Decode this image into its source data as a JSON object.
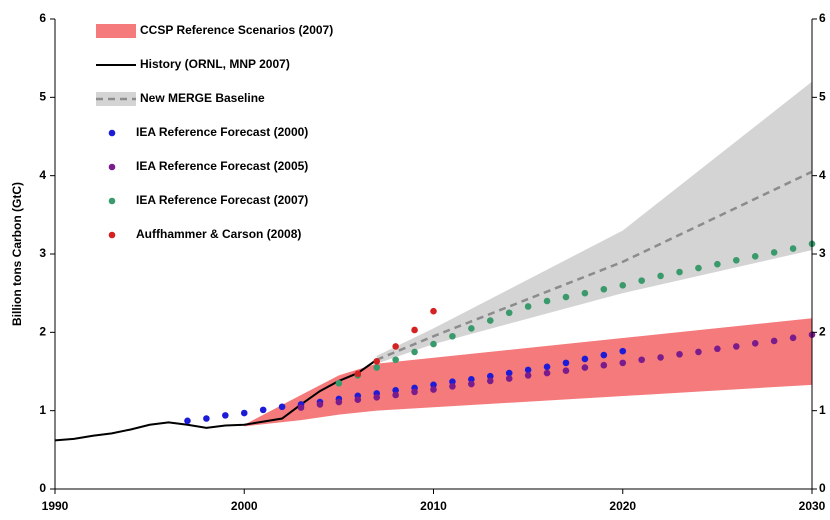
{
  "chart_data": {
    "type": "mixed",
    "y_label": "Billion tons Carbon (GtC)",
    "xlim": [
      1990,
      2030
    ],
    "xticks": [
      1990,
      2000,
      2010,
      2020,
      2030
    ],
    "ylim": [
      0,
      6
    ],
    "yticks": [
      0,
      1,
      2,
      3,
      4,
      5,
      6
    ],
    "y2lim": [
      0,
      6
    ],
    "y2ticks": [
      0,
      1,
      2,
      3,
      4,
      5,
      6
    ],
    "grid": false,
    "legend": "upper left",
    "series": [
      {
        "name": "CCSP Reference Scenarios (2007)",
        "type": "band",
        "color": "#f47a7c",
        "x": [
          2000,
          2003,
          2005,
          2007,
          2030
        ],
        "lower": [
          0.8,
          0.88,
          0.95,
          1.0,
          1.33
        ],
        "upper": [
          0.82,
          1.2,
          1.45,
          1.6,
          2.18
        ]
      },
      {
        "name": "History (ORNL, MNP 2007)",
        "type": "line",
        "color": "#000000",
        "x": [
          1990,
          1991,
          1992,
          1993,
          1994,
          1995,
          1996,
          1997,
          1998,
          1999,
          2000,
          2001,
          2002,
          2003,
          2004,
          2005,
          2006,
          2007
        ],
        "values": [
          0.62,
          0.64,
          0.68,
          0.71,
          0.76,
          0.82,
          0.85,
          0.82,
          0.78,
          0.81,
          0.82,
          0.86,
          0.9,
          1.08,
          1.25,
          1.38,
          1.48,
          1.65
        ]
      },
      {
        "name": "New MERGE Baseline",
        "type": "line",
        "dashed": true,
        "color": "#8c8c8c",
        "band_color": "#d4d4d4",
        "x": [
          2007,
          2010,
          2020,
          2030
        ],
        "values": [
          1.65,
          1.95,
          2.9,
          4.05
        ],
        "lower": [
          1.6,
          1.85,
          2.5,
          3.05
        ],
        "upper": [
          1.7,
          2.05,
          3.3,
          5.2
        ]
      },
      {
        "name": "IEA Reference Forecast (2000)",
        "type": "scatter",
        "color": "#1c1cd8",
        "x": [
          1997,
          1998,
          1999,
          2000,
          2001,
          2002,
          2003,
          2004,
          2005,
          2006,
          2007,
          2008,
          2009,
          2010,
          2011,
          2012,
          2013,
          2014,
          2015,
          2016,
          2017,
          2018,
          2019,
          2020
        ],
        "values": [
          0.87,
          0.9,
          0.94,
          0.97,
          1.01,
          1.05,
          1.08,
          1.11,
          1.15,
          1.19,
          1.22,
          1.26,
          1.29,
          1.33,
          1.37,
          1.4,
          1.44,
          1.48,
          1.52,
          1.56,
          1.61,
          1.66,
          1.71,
          1.76
        ]
      },
      {
        "name": "IEA Reference Forecast (2005)",
        "type": "scatter",
        "color": "#7b1c8c",
        "x": [
          2003,
          2004,
          2005,
          2006,
          2007,
          2008,
          2009,
          2010,
          2011,
          2012,
          2013,
          2014,
          2015,
          2016,
          2017,
          2018,
          2019,
          2020,
          2021,
          2022,
          2023,
          2024,
          2025,
          2026,
          2027,
          2028,
          2029,
          2030
        ],
        "values": [
          1.04,
          1.08,
          1.11,
          1.14,
          1.17,
          1.2,
          1.24,
          1.27,
          1.31,
          1.34,
          1.38,
          1.41,
          1.45,
          1.48,
          1.51,
          1.55,
          1.58,
          1.61,
          1.65,
          1.68,
          1.72,
          1.75,
          1.79,
          1.82,
          1.86,
          1.89,
          1.93,
          1.97
        ]
      },
      {
        "name": "IEA Reference Forecast (2007)",
        "type": "scatter",
        "color": "#3a9a6c",
        "x": [
          2005,
          2006,
          2007,
          2008,
          2009,
          2010,
          2011,
          2012,
          2013,
          2014,
          2015,
          2016,
          2017,
          2018,
          2019,
          2020,
          2021,
          2022,
          2023,
          2024,
          2025,
          2026,
          2027,
          2028,
          2029,
          2030
        ],
        "values": [
          1.35,
          1.45,
          1.55,
          1.65,
          1.75,
          1.85,
          1.95,
          2.05,
          2.15,
          2.25,
          2.33,
          2.4,
          2.45,
          2.5,
          2.55,
          2.6,
          2.66,
          2.72,
          2.77,
          2.82,
          2.87,
          2.92,
          2.97,
          3.02,
          3.07,
          3.13
        ]
      },
      {
        "name": "Auffhammer & Carson (2008)",
        "type": "scatter",
        "color": "#d42222",
        "x": [
          2006,
          2007,
          2008,
          2009,
          2010
        ],
        "values": [
          1.47,
          1.63,
          1.82,
          2.03,
          2.27
        ]
      }
    ]
  }
}
